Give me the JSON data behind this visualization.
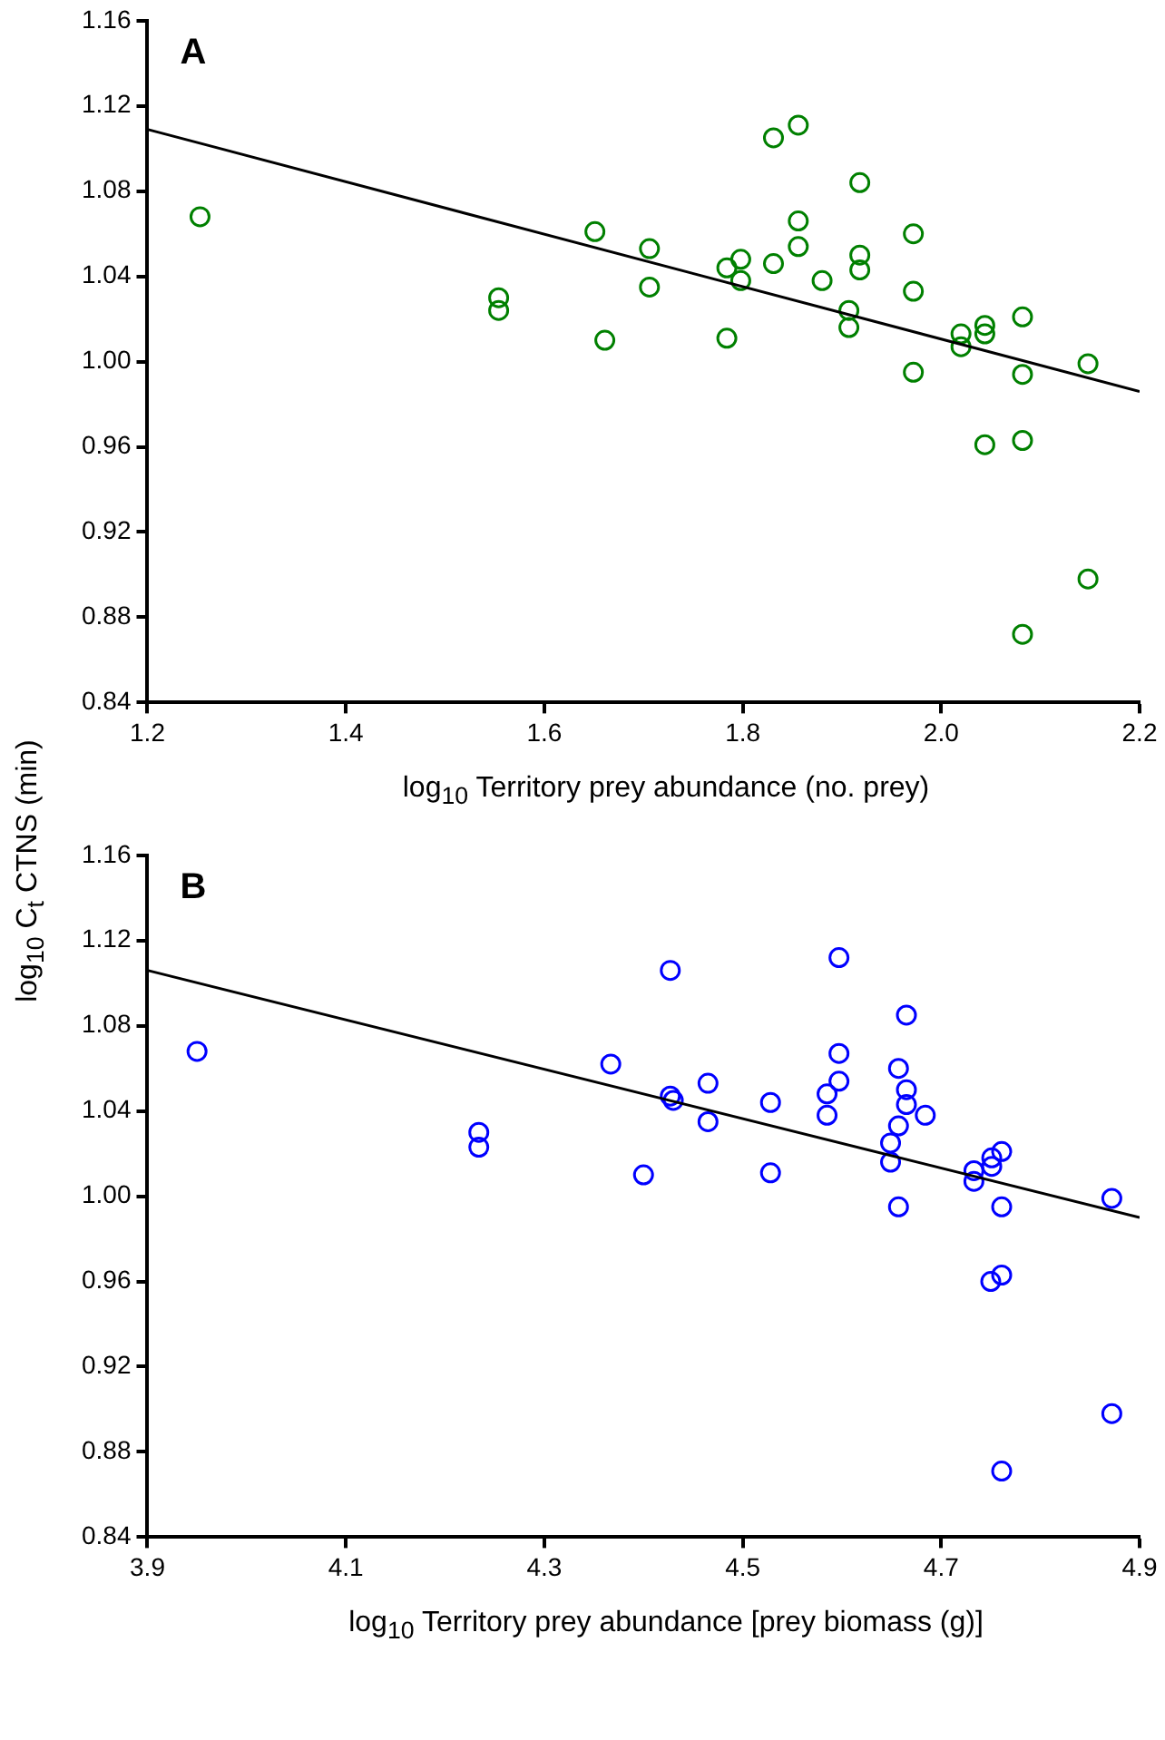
{
  "chart_data": [
    {
      "type": "scatter",
      "title": "A",
      "xlabel": "log$_{10}$ Territory prey abundance (no. prey)",
      "ylabel": "log$_{10}$ C$_{t}$ CTNS (min)",
      "xlim": [
        1.2,
        2.2
      ],
      "xticks": [
        1.2,
        1.4,
        1.6,
        1.8,
        {
          "value": 2,
          "label": "2.0"
        },
        2.2
      ],
      "ylim": [
        0.84,
        1.16
      ],
      "yticks": [
        0.84,
        0.88,
        0.92,
        0.96,
        {
          "value": 1,
          "label": "1.00"
        },
        1.04,
        1.08,
        1.12,
        1.16
      ],
      "grid": false,
      "legend": false,
      "series": [
        {
          "marker": "circle",
          "color": "#008000",
          "x": [
            1.253,
            1.554,
            1.554,
            1.651,
            1.706,
            1.706,
            1.661,
            1.784,
            1.798,
            1.798,
            1.784,
            1.831,
            1.856,
            1.831,
            1.856,
            1.856,
            1.88,
            1.918,
            1.918,
            1.918,
            1.907,
            1.907,
            1.972,
            1.972,
            1.972,
            2.02,
            2.02,
            2.044,
            2.044,
            2.044,
            2.082,
            2.082,
            2.082,
            2.082,
            2.148,
            2.148
          ],
          "values": [
            1.068,
            1.03,
            1.024,
            1.061,
            1.053,
            1.035,
            1.01,
            1.044,
            1.048,
            1.038,
            1.011,
            1.105,
            1.111,
            1.046,
            1.066,
            1.054,
            1.038,
            1.084,
            1.05,
            1.043,
            1.024,
            1.016,
            1.06,
            1.033,
            0.995,
            1.013,
            1.007,
            1.017,
            1.013,
            0.961,
            1.021,
            0.994,
            0.963,
            0.872,
            0.999,
            0.898
          ]
        },
        {
          "type": "line",
          "marker": "none",
          "color": "#000000",
          "x": [
            1.2,
            2.2
          ],
          "values": [
            1.109,
            0.986
          ]
        }
      ]
    },
    {
      "type": "scatter",
      "title": "B",
      "xlabel": "log$_{10}$ Territory prey abundance [prey biomass (g)]",
      "xlim": [
        3.9,
        4.9
      ],
      "xticks": [
        3.9,
        4.1,
        4.3,
        4.5,
        4.7,
        4.9
      ],
      "ylim": [
        0.84,
        1.16
      ],
      "yticks": [
        0.84,
        0.88,
        0.92,
        0.96,
        {
          "value": 1,
          "label": "1.00"
        },
        1.04,
        1.08,
        1.12,
        1.16
      ],
      "grid": false,
      "legend": false,
      "series": [
        {
          "marker": "circle",
          "color": "#0000ff",
          "x": [
            3.95,
            4.234,
            4.234,
            4.367,
            4.4,
            4.427,
            4.427,
            4.43,
            4.465,
            4.465,
            4.528,
            4.528,
            4.597,
            4.597,
            4.597,
            4.585,
            4.585,
            4.665,
            4.657,
            4.665,
            4.665,
            4.684,
            4.657,
            4.649,
            4.649,
            4.657,
            4.733,
            4.733,
            4.751,
            4.761,
            4.751,
            4.761,
            4.761,
            4.75,
            4.761,
            4.872,
            4.872
          ],
          "values": [
            1.068,
            1.03,
            1.023,
            1.062,
            1.01,
            1.106,
            1.047,
            1.045,
            1.053,
            1.035,
            1.044,
            1.011,
            1.112,
            1.067,
            1.054,
            1.048,
            1.038,
            1.085,
            1.06,
            1.05,
            1.043,
            1.038,
            1.033,
            1.025,
            1.016,
            0.995,
            1.012,
            1.007,
            1.018,
            1.021,
            1.014,
            0.995,
            0.963,
            0.96,
            0.871,
            0.999,
            0.898
          ]
        },
        {
          "type": "line",
          "marker": "none",
          "color": "#000000",
          "x": [
            3.9,
            4.9
          ],
          "values": [
            1.106,
            0.99
          ]
        }
      ]
    }
  ]
}
